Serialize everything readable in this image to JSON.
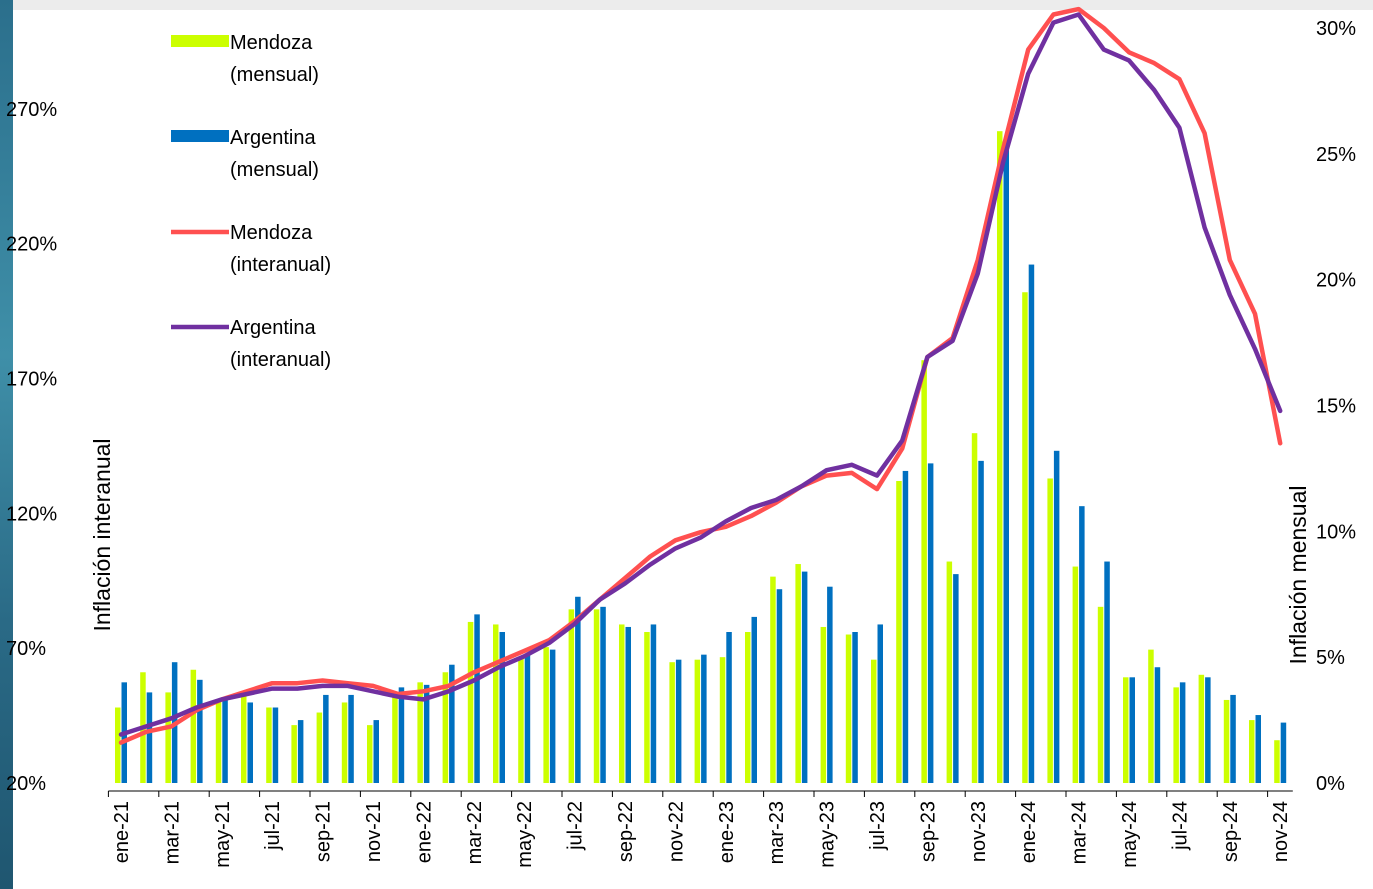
{
  "chart_data": {
    "type": "bar+line",
    "title": "",
    "y_left": {
      "label": "Inflación interanual",
      "ticks": [
        "20%",
        "70%",
        "120%",
        "170%",
        "220%",
        "270%"
      ],
      "range": [
        20,
        300
      ]
    },
    "y_right": {
      "label": "Inflación mensual",
      "ticks": [
        "0%",
        "5%",
        "10%",
        "15%",
        "20%",
        "25%",
        "30%"
      ],
      "range": [
        0,
        30
      ]
    },
    "months": [
      "ene-21",
      "feb-21",
      "mar-21",
      "abr-21",
      "may-21",
      "jun-21",
      "jul-21",
      "ago-21",
      "sep-21",
      "oct-21",
      "nov-21",
      "dic-21",
      "ene-22",
      "feb-22",
      "mar-22",
      "abr-22",
      "may-22",
      "jun-22",
      "jul-22",
      "ago-22",
      "sep-22",
      "oct-22",
      "nov-22",
      "dic-22",
      "ene-23",
      "feb-23",
      "mar-23",
      "abr-23",
      "may-23",
      "jun-23",
      "jul-23",
      "ago-23",
      "sep-23",
      "oct-23",
      "nov-23",
      "dic-23",
      "ene-24",
      "feb-24",
      "mar-24",
      "abr-24",
      "may-24",
      "jun-24",
      "jul-24",
      "ago-24",
      "sep-24",
      "oct-24",
      "nov-24"
    ],
    "x_tick_labels": [
      "ene-21",
      "mar-21",
      "may-21",
      "jul-21",
      "sep-21",
      "nov-21",
      "ene-22",
      "mar-22",
      "may-22",
      "jul-22",
      "sep-22",
      "nov-22",
      "ene-23",
      "mar-23",
      "may-23",
      "jul-23",
      "sep-23",
      "nov-23",
      "ene-24",
      "mar-24",
      "may-24",
      "jul-24",
      "sep-24",
      "nov-24"
    ],
    "legend_position": "top-left",
    "series": [
      {
        "name": "Mendoza\n(mensual)",
        "kind": "bar",
        "axis": "right",
        "color": "#ccff00",
        "values": [
          3.0,
          4.4,
          3.6,
          4.5,
          3.3,
          3.5,
          3.0,
          2.3,
          2.8,
          3.2,
          2.3,
          3.6,
          4.0,
          4.4,
          6.4,
          6.3,
          5.0,
          5.4,
          6.9,
          6.9,
          6.3,
          6.0,
          4.8,
          4.9,
          5.0,
          6.0,
          8.2,
          8.7,
          6.2,
          5.9,
          4.9,
          12.0,
          16.8,
          8.8,
          13.9,
          25.9,
          19.5,
          12.1,
          8.6,
          7.0,
          4.2,
          5.3,
          3.8,
          4.3,
          3.3,
          2.5,
          1.7
        ]
      },
      {
        "name": "Argentina\n(mensual)",
        "kind": "bar",
        "axis": "right",
        "color": "#0070c0",
        "values": [
          4.0,
          3.6,
          4.8,
          4.1,
          3.3,
          3.2,
          3.0,
          2.5,
          3.5,
          3.5,
          2.5,
          3.8,
          3.9,
          4.7,
          6.7,
          6.0,
          5.1,
          5.3,
          7.4,
          7.0,
          6.2,
          6.3,
          4.9,
          5.1,
          6.0,
          6.6,
          7.7,
          8.4,
          7.8,
          6.0,
          6.3,
          12.4,
          12.7,
          8.3,
          12.8,
          25.5,
          20.6,
          13.2,
          11.0,
          8.8,
          4.2,
          4.6,
          4.0,
          4.2,
          3.5,
          2.7,
          2.4
        ]
      },
      {
        "name": "Mendoza\n(interanual)",
        "kind": "line",
        "axis": "left",
        "color": "#ff5050",
        "values": [
          35,
          39,
          41,
          47,
          51,
          54,
          57,
          57,
          58,
          57,
          56,
          53,
          54,
          56,
          61,
          65,
          69,
          73,
          80,
          88,
          96,
          104,
          110,
          113,
          115,
          119,
          124,
          130,
          134,
          135,
          129,
          144,
          178,
          185,
          214,
          255,
          292,
          305,
          307,
          300,
          291,
          287,
          281,
          261,
          214,
          194,
          146
        ]
      },
      {
        "name": "Argentina\n(interanual)",
        "kind": "line",
        "axis": "left",
        "color": "#7030a0",
        "values": [
          38,
          41,
          44,
          48,
          51,
          53,
          55,
          55,
          56,
          56,
          54,
          52,
          51,
          54,
          58,
          63,
          67,
          72,
          79,
          88,
          94,
          101,
          107,
          111,
          117,
          122,
          125,
          130,
          136,
          138,
          134,
          147,
          178,
          184,
          209,
          250,
          283,
          302,
          305,
          292,
          288,
          277,
          263,
          226,
          201,
          181,
          158
        ]
      }
    ]
  }
}
